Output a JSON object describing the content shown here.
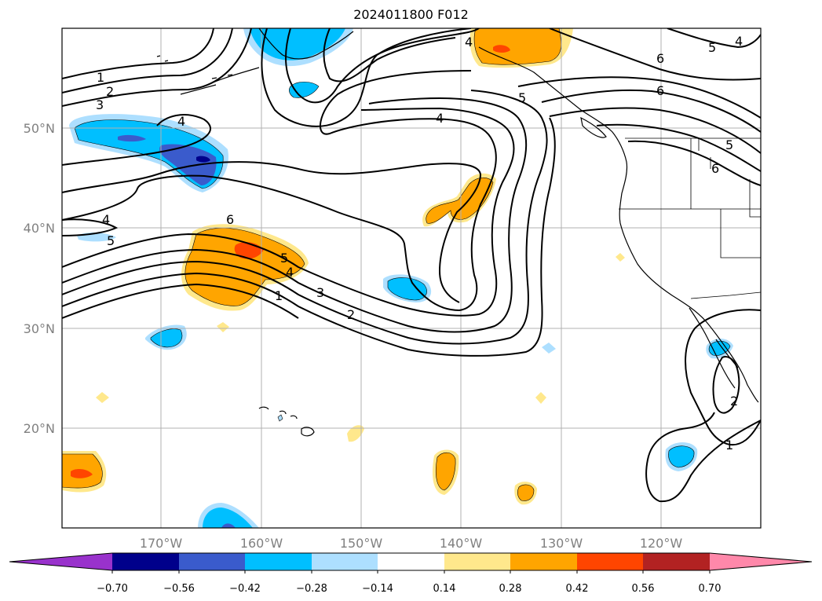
{
  "title": "2024011800 F012",
  "map": {
    "lat_labels": [
      "50°N",
      "40°N",
      "30°N",
      "20°N"
    ],
    "lon_labels": [
      "170°W",
      "160°W",
      "150°W",
      "140°W",
      "130°W",
      "120°W"
    ],
    "contour_labels": [
      "1",
      "2",
      "3",
      "4",
      "5",
      "6",
      "6",
      "5",
      "4",
      "3",
      "2",
      "1",
      "4",
      "4",
      "5",
      "4",
      "6",
      "6",
      "5",
      "4",
      "5",
      "2",
      "1"
    ]
  },
  "colorbar": {
    "ticks": [
      "−0.70",
      "−0.56",
      "−0.42",
      "−0.28",
      "−0.14",
      "0.14",
      "0.28",
      "0.42",
      "0.56",
      "0.70"
    ],
    "colors": [
      "#9932cc",
      "#00008b",
      "#3a5bcc",
      "#00bfff",
      "#addfff",
      "#ffffff",
      "#ffe88c",
      "#ffa500",
      "#ff4500",
      "#b22222",
      "#ff88aa"
    ]
  }
}
